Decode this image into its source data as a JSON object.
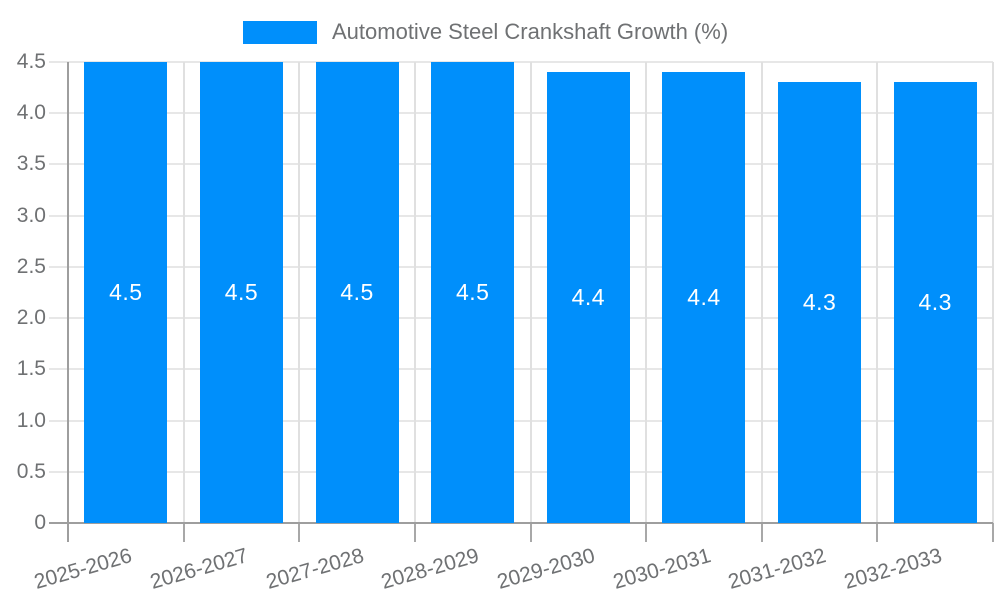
{
  "chart_data": {
    "type": "bar",
    "title": "Automotive Steel Crankshaft Growth (%)",
    "categories": [
      "2025-2026",
      "2026-2027",
      "2027-2028",
      "2028-2029",
      "2029-2030",
      "2030-2031",
      "2031-2032",
      "2032-2033"
    ],
    "values": [
      4.5,
      4.5,
      4.5,
      4.5,
      4.4,
      4.4,
      4.3,
      4.3
    ],
    "data_labels": [
      "4.5",
      "4.5",
      "4.5",
      "4.5",
      "4.4",
      "4.4",
      "4.3",
      "4.3"
    ],
    "xlabel": "",
    "ylabel": "",
    "ylim": [
      0,
      4.5
    ],
    "ytick_labels": [
      "4.5",
      "4.0",
      "3.5",
      "3.0",
      "2.5",
      "2.0",
      "1.5",
      "1.0",
      "0.5",
      "0"
    ],
    "grid": "horizontal and vertical gridlines on",
    "legend_position": "top",
    "x_label_rotation_deg": -16
  },
  "colors": {
    "bar": "#008FFB",
    "data_label": "#FFFFFF",
    "axis_label": "#6F7173",
    "legend_label": "#6F7173",
    "h_gridline": "#E7E7E7",
    "v_gridline": "#E0E0E0",
    "axis_line": "#9E9E9E",
    "tick": "#A8A8A8",
    "background": "#FFFFFF"
  }
}
